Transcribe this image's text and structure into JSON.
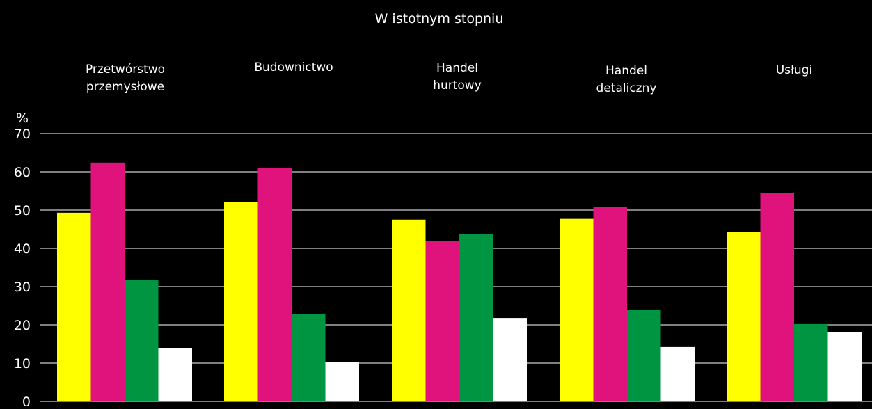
{
  "chart_data": {
    "type": "bar",
    "title": "W istotnym stopniu",
    "ylabel": "%",
    "xlabel": "",
    "ylim": [
      0,
      70
    ],
    "yticks": [
      0,
      10,
      20,
      30,
      40,
      50,
      60,
      70
    ],
    "grid": true,
    "legend": "none",
    "categories": [
      [
        "Przetwórstwo",
        "przemysłowe"
      ],
      [
        "Budownictwo"
      ],
      [
        "Handel",
        "hurtowy"
      ],
      [
        "Handel",
        "detaliczny"
      ],
      [
        "Usługi"
      ]
    ],
    "series": [
      {
        "color": "#ffff00",
        "values": [
          49.3,
          52.0,
          47.5,
          47.7,
          44.3
        ]
      },
      {
        "color": "#e0137c",
        "values": [
          62.4,
          61.0,
          42.0,
          50.8,
          54.5
        ]
      },
      {
        "color": "#009540",
        "values": [
          31.7,
          22.8,
          43.8,
          24.0,
          20.2
        ]
      },
      {
        "color": "#ffffff",
        "values": [
          14.0,
          10.2,
          21.8,
          14.2,
          18.0
        ]
      }
    ]
  },
  "colors": {
    "background": "#000000",
    "text": "#ffffff",
    "grid": "#ffffff"
  }
}
